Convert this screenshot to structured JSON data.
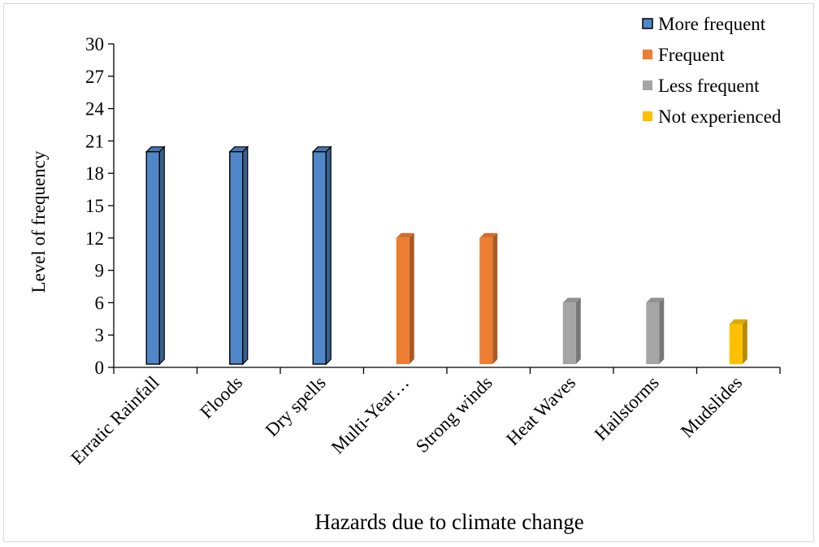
{
  "chart_data": {
    "type": "bar",
    "title": "",
    "xlabel": "Hazards  due to climate change",
    "ylabel": "Level of frequency",
    "ylim": [
      0,
      30
    ],
    "yticks": [
      0,
      3,
      6,
      9,
      12,
      15,
      18,
      21,
      24,
      27,
      30
    ],
    "grid": false,
    "legend_position": "top-right",
    "categories": [
      "Erratic Rainfall",
      "Floods",
      "Dry spells",
      "Multi-Year…",
      "Strong winds",
      "Heat Waves",
      "Hailstorms",
      "Mudslides"
    ],
    "series": [
      {
        "name": "More frequent",
        "color": "#4f87c8",
        "values": [
          20,
          20,
          20,
          null,
          null,
          null,
          null,
          null
        ]
      },
      {
        "name": "Frequent",
        "color": "#ed7d31",
        "values": [
          null,
          null,
          null,
          12,
          12,
          null,
          null,
          null
        ]
      },
      {
        "name": "Less frequent",
        "color": "#a5a5a5",
        "values": [
          null,
          null,
          null,
          null,
          null,
          6,
          6,
          null
        ]
      },
      {
        "name": "Not experienced",
        "color": "#ffc000",
        "values": [
          null,
          null,
          null,
          null,
          null,
          null,
          null,
          4
        ]
      }
    ]
  }
}
